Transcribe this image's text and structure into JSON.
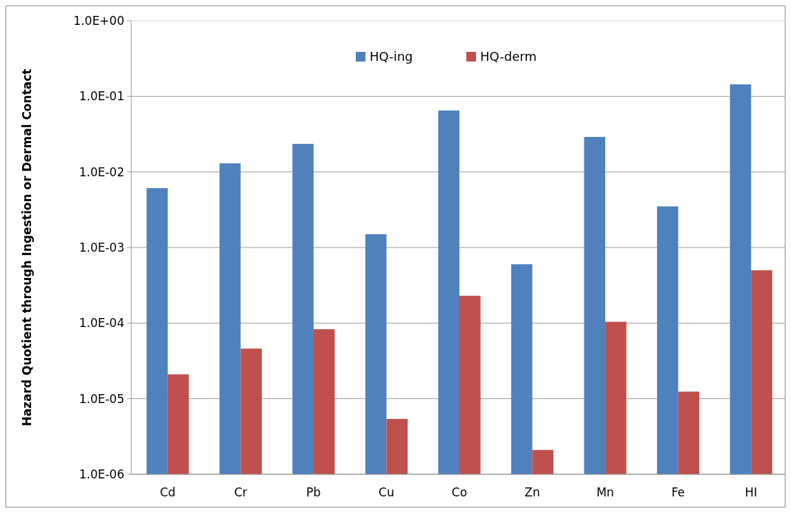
{
  "chart_data": {
    "type": "bar",
    "ylabel": "Hazard Quotient through Ingestion or Dermal Contact",
    "categories": [
      "Cd",
      "Cr",
      "Pb",
      "Cu",
      "Co",
      "Zn",
      "Mn",
      "Fe",
      "HI"
    ],
    "series": [
      {
        "name": "HQ-ing",
        "color": "#4f81bd",
        "values": [
          0.0061,
          0.013,
          0.0235,
          0.0015,
          0.065,
          0.0006,
          0.029,
          0.0035,
          0.144
        ]
      },
      {
        "name": "HQ-derm",
        "color": "#c0504d",
        "values": [
          2.1e-05,
          4.6e-05,
          8.3e-05,
          5.4e-06,
          0.00023,
          2.1e-06,
          0.000104,
          1.24e-05,
          0.0005
        ]
      }
    ],
    "log": true,
    "ylim": [
      1e-06,
      1
    ],
    "yticks": [
      {
        "value": 1e-06,
        "label": "1.0E-06"
      },
      {
        "value": 1e-05,
        "label": "1.0E-05"
      },
      {
        "value": 0.0001,
        "label": "1.0E-04"
      },
      {
        "value": 0.001,
        "label": "1.0E-03"
      },
      {
        "value": 0.01,
        "label": "1.0E-02"
      },
      {
        "value": 0.1,
        "label": "1.0E-01"
      },
      {
        "value": 1,
        "label": "1.0E+00"
      }
    ],
    "grid": "y",
    "legend": "top"
  }
}
